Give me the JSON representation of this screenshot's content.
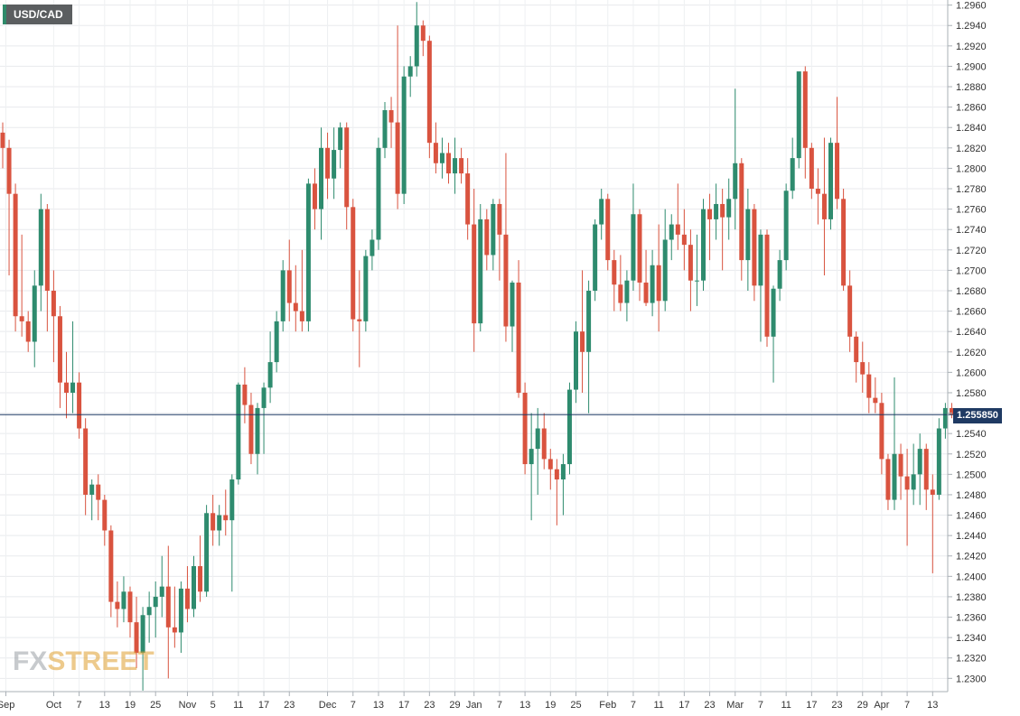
{
  "chart_data": {
    "type": "candlestick",
    "symbol": "USD/CAD",
    "last_price_label": "1.255850",
    "last_price": 1.25585,
    "ylim": [
      1.2287,
      1.2965
    ],
    "y_ticks": [
      "1.2300",
      "1.2320",
      "1.2340",
      "1.2360",
      "1.2380",
      "1.2400",
      "1.2420",
      "1.2440",
      "1.2460",
      "1.2480",
      "1.2500",
      "1.2520",
      "1.2540",
      "1.2560",
      "1.2580",
      "1.2600",
      "1.2620",
      "1.2640",
      "1.2660",
      "1.2680",
      "1.2700",
      "1.2720",
      "1.2740",
      "1.2760",
      "1.2780",
      "1.2800",
      "1.2820",
      "1.2840",
      "1.2860",
      "1.2880",
      "1.2900",
      "1.2920",
      "1.2940",
      "1.2960"
    ],
    "x_ticks": [
      {
        "label": "Sep",
        "idx": 0.5
      },
      {
        "label": "Oct",
        "idx": 8
      },
      {
        "label": "7",
        "idx": 12
      },
      {
        "label": "13",
        "idx": 16
      },
      {
        "label": "19",
        "idx": 20
      },
      {
        "label": "25",
        "idx": 24
      },
      {
        "label": "Nov",
        "idx": 29
      },
      {
        "label": "5",
        "idx": 33
      },
      {
        "label": "11",
        "idx": 37
      },
      {
        "label": "17",
        "idx": 41
      },
      {
        "label": "23",
        "idx": 45
      },
      {
        "label": "Dec",
        "idx": 51
      },
      {
        "label": "7",
        "idx": 55
      },
      {
        "label": "13",
        "idx": 59
      },
      {
        "label": "17",
        "idx": 63
      },
      {
        "label": "23",
        "idx": 67
      },
      {
        "label": "29",
        "idx": 71
      },
      {
        "label": "Jan",
        "idx": 74
      },
      {
        "label": "7",
        "idx": 78
      },
      {
        "label": "13",
        "idx": 82
      },
      {
        "label": "19",
        "idx": 86
      },
      {
        "label": "25",
        "idx": 90
      },
      {
        "label": "Feb",
        "idx": 95
      },
      {
        "label": "7",
        "idx": 99
      },
      {
        "label": "11",
        "idx": 103
      },
      {
        "label": "17",
        "idx": 107
      },
      {
        "label": "23",
        "idx": 111
      },
      {
        "label": "Mar",
        "idx": 115
      },
      {
        "label": "7",
        "idx": 119
      },
      {
        "label": "11",
        "idx": 123
      },
      {
        "label": "17",
        "idx": 127
      },
      {
        "label": "23",
        "idx": 131
      },
      {
        "label": "29",
        "idx": 135
      },
      {
        "label": "Apr",
        "idx": 138
      },
      {
        "label": "7",
        "idx": 142
      },
      {
        "label": "13",
        "idx": 146
      }
    ],
    "candles": [
      [
        1.2835,
        1.2845,
        1.28,
        1.282
      ],
      [
        1.282,
        1.2828,
        1.2695,
        1.2775
      ],
      [
        1.2775,
        1.2785,
        1.264,
        1.2655
      ],
      [
        1.2655,
        1.2735,
        1.2635,
        1.265
      ],
      [
        1.265,
        1.266,
        1.262,
        1.263
      ],
      [
        1.263,
        1.27,
        1.2605,
        1.2685
      ],
      [
        1.2685,
        1.2775,
        1.266,
        1.276
      ],
      [
        1.276,
        1.2765,
        1.264,
        1.268
      ],
      [
        1.268,
        1.27,
        1.261,
        1.2655
      ],
      [
        1.2655,
        1.2665,
        1.2565,
        1.259
      ],
      [
        1.259,
        1.262,
        1.2555,
        1.258
      ],
      [
        1.258,
        1.265,
        1.256,
        1.259
      ],
      [
        1.259,
        1.26,
        1.2535,
        1.2545
      ],
      [
        1.2545,
        1.2555,
        1.246,
        1.248
      ],
      [
        1.248,
        1.2495,
        1.2455,
        1.249
      ],
      [
        1.249,
        1.25,
        1.2455,
        1.2475
      ],
      [
        1.2475,
        1.248,
        1.243,
        1.2445
      ],
      [
        1.2445,
        1.245,
        1.236,
        1.2375
      ],
      [
        1.2375,
        1.2395,
        1.235,
        1.2368
      ],
      [
        1.2368,
        1.24,
        1.2355,
        1.2385
      ],
      [
        1.2385,
        1.239,
        1.234,
        1.2355
      ],
      [
        1.2355,
        1.238,
        1.231,
        1.2325
      ],
      [
        1.2325,
        1.237,
        1.2288,
        1.2362
      ],
      [
        1.2362,
        1.2385,
        1.2335,
        1.237
      ],
      [
        1.237,
        1.2395,
        1.234,
        1.238
      ],
      [
        1.238,
        1.242,
        1.236,
        1.239
      ],
      [
        1.239,
        1.243,
        1.23,
        1.235
      ],
      [
        1.235,
        1.239,
        1.233,
        1.2345
      ],
      [
        1.2345,
        1.2395,
        1.2325,
        1.2388
      ],
      [
        1.2388,
        1.241,
        1.2355,
        1.2368
      ],
      [
        1.2368,
        1.242,
        1.236,
        1.241
      ],
      [
        1.241,
        1.244,
        1.2375,
        1.2385
      ],
      [
        1.2385,
        1.247,
        1.238,
        1.2462
      ],
      [
        1.2462,
        1.248,
        1.243,
        1.2445
      ],
      [
        1.2445,
        1.247,
        1.243,
        1.246
      ],
      [
        1.246,
        1.2485,
        1.244,
        1.2455
      ],
      [
        1.2455,
        1.25,
        1.2385,
        1.2495
      ],
      [
        1.2495,
        1.259,
        1.249,
        1.2588
      ],
      [
        1.2588,
        1.2605,
        1.255,
        1.2568
      ],
      [
        1.2568,
        1.258,
        1.251,
        1.252
      ],
      [
        1.252,
        1.257,
        1.25,
        1.2565
      ],
      [
        1.2565,
        1.259,
        1.252,
        1.2585
      ],
      [
        1.2585,
        1.264,
        1.257,
        1.261
      ],
      [
        1.261,
        1.266,
        1.26,
        1.265
      ],
      [
        1.265,
        1.271,
        1.264,
        1.27
      ],
      [
        1.27,
        1.273,
        1.265,
        1.2668
      ],
      [
        1.2668,
        1.2705,
        1.264,
        1.266
      ],
      [
        1.266,
        1.272,
        1.264,
        1.265
      ],
      [
        1.265,
        1.279,
        1.264,
        1.2785
      ],
      [
        1.2785,
        1.28,
        1.274,
        1.276
      ],
      [
        1.276,
        1.284,
        1.273,
        1.282
      ],
      [
        1.282,
        1.2835,
        1.277,
        1.279
      ],
      [
        1.279,
        1.284,
        1.277,
        1.2818
      ],
      [
        1.2818,
        1.2845,
        1.28,
        1.284
      ],
      [
        1.284,
        1.2845,
        1.274,
        1.2762
      ],
      [
        1.2762,
        1.277,
        1.264,
        1.2652
      ],
      [
        1.2652,
        1.27,
        1.2605,
        1.265
      ],
      [
        1.265,
        1.272,
        1.264,
        1.2714
      ],
      [
        1.2714,
        1.274,
        1.27,
        1.273
      ],
      [
        1.273,
        1.283,
        1.272,
        1.282
      ],
      [
        1.282,
        1.2865,
        1.281,
        1.2857
      ],
      [
        1.2857,
        1.287,
        1.282,
        1.2845
      ],
      [
        1.2845,
        1.294,
        1.276,
        1.2775
      ],
      [
        1.2775,
        1.29,
        1.2765,
        1.289
      ],
      [
        1.289,
        1.291,
        1.287,
        1.29
      ],
      [
        1.29,
        1.2963,
        1.289,
        1.294
      ],
      [
        1.294,
        1.2945,
        1.291,
        1.2925
      ],
      [
        1.2925,
        1.293,
        1.281,
        1.2825
      ],
      [
        1.2825,
        1.2845,
        1.2795,
        1.2805
      ],
      [
        1.2805,
        1.283,
        1.279,
        1.2815
      ],
      [
        1.2815,
        1.2825,
        1.2785,
        1.2795
      ],
      [
        1.2795,
        1.283,
        1.2775,
        1.281
      ],
      [
        1.281,
        1.282,
        1.2785,
        1.2795
      ],
      [
        1.2795,
        1.281,
        1.273,
        1.2745
      ],
      [
        1.2745,
        1.278,
        1.262,
        1.2648
      ],
      [
        1.2648,
        1.2765,
        1.264,
        1.275
      ],
      [
        1.275,
        1.276,
        1.27,
        1.2715
      ],
      [
        1.2715,
        1.277,
        1.27,
        1.2765
      ],
      [
        1.2765,
        1.277,
        1.269,
        1.2735
      ],
      [
        1.2735,
        1.2815,
        1.263,
        1.2645
      ],
      [
        1.2645,
        1.269,
        1.262,
        1.2688
      ],
      [
        1.2688,
        1.271,
        1.2575,
        1.258
      ],
      [
        1.258,
        1.259,
        1.25,
        1.251
      ],
      [
        1.251,
        1.256,
        1.2455,
        1.2525
      ],
      [
        1.2525,
        1.2565,
        1.248,
        1.2545
      ],
      [
        1.2545,
        1.256,
        1.2505,
        1.2515
      ],
      [
        1.2515,
        1.2525,
        1.2485,
        1.2505
      ],
      [
        1.2505,
        1.2515,
        1.245,
        1.2495
      ],
      [
        1.2495,
        1.252,
        1.246,
        1.251
      ],
      [
        1.251,
        1.259,
        1.25,
        1.2583
      ],
      [
        1.2583,
        1.265,
        1.257,
        1.264
      ],
      [
        1.264,
        1.27,
        1.258,
        1.262
      ],
      [
        1.262,
        1.269,
        1.256,
        1.268
      ],
      [
        1.268,
        1.275,
        1.267,
        1.2745
      ],
      [
        1.2745,
        1.278,
        1.273,
        1.277
      ],
      [
        1.277,
        1.2775,
        1.27,
        1.271
      ],
      [
        1.271,
        1.272,
        1.266,
        1.2686
      ],
      [
        1.2686,
        1.2715,
        1.266,
        1.2668
      ],
      [
        1.2668,
        1.27,
        1.265,
        1.269
      ],
      [
        1.269,
        1.2785,
        1.268,
        1.2755
      ],
      [
        1.2755,
        1.276,
        1.267,
        1.2688
      ],
      [
        1.2688,
        1.272,
        1.2665,
        1.2668
      ],
      [
        1.2668,
        1.272,
        1.2655,
        1.2705
      ],
      [
        1.2705,
        1.2745,
        1.264,
        1.267
      ],
      [
        1.267,
        1.276,
        1.266,
        1.273
      ],
      [
        1.273,
        1.2755,
        1.271,
        1.2745
      ],
      [
        1.2745,
        1.2785,
        1.272,
        1.2735
      ],
      [
        1.2735,
        1.276,
        1.27,
        1.2725
      ],
      [
        1.2725,
        1.274,
        1.266,
        1.269
      ],
      [
        1.269,
        1.2735,
        1.2665,
        1.269
      ],
      [
        1.269,
        1.277,
        1.268,
        1.276
      ],
      [
        1.276,
        1.2775,
        1.271,
        1.275
      ],
      [
        1.275,
        1.2785,
        1.273,
        1.2765
      ],
      [
        1.2765,
        1.278,
        1.27,
        1.2752
      ],
      [
        1.2752,
        1.279,
        1.273,
        1.277
      ],
      [
        1.277,
        1.2878,
        1.274,
        1.2805
      ],
      [
        1.2805,
        1.281,
        1.269,
        1.271
      ],
      [
        1.271,
        1.278,
        1.268,
        1.276
      ],
      [
        1.276,
        1.2765,
        1.267,
        1.2685
      ],
      [
        1.2685,
        1.274,
        1.263,
        1.2735
      ],
      [
        1.2735,
        1.274,
        1.2625,
        1.2635
      ],
      [
        1.2635,
        1.2685,
        1.259,
        1.2682
      ],
      [
        1.2682,
        1.272,
        1.267,
        1.271
      ],
      [
        1.271,
        1.2785,
        1.27,
        1.2778
      ],
      [
        1.2778,
        1.283,
        1.277,
        1.281
      ],
      [
        1.281,
        1.289,
        1.28,
        1.2895
      ],
      [
        1.2895,
        1.29,
        1.279,
        1.282
      ],
      [
        1.282,
        1.2825,
        1.277,
        1.278
      ],
      [
        1.278,
        1.28,
        1.2745,
        1.2775
      ],
      [
        1.2775,
        1.283,
        1.2695,
        1.275
      ],
      [
        1.275,
        1.283,
        1.274,
        1.2825
      ],
      [
        1.2825,
        1.287,
        1.276,
        1.277
      ],
      [
        1.277,
        1.278,
        1.268,
        1.2685
      ],
      [
        1.2685,
        1.27,
        1.262,
        1.2635
      ],
      [
        1.2635,
        1.264,
        1.259,
        1.261
      ],
      [
        1.261,
        1.263,
        1.258,
        1.2598
      ],
      [
        1.2598,
        1.261,
        1.256,
        1.2575
      ],
      [
        1.2575,
        1.2595,
        1.256,
        1.257
      ],
      [
        1.257,
        1.258,
        1.25,
        1.2515
      ],
      [
        1.2515,
        1.252,
        1.2465,
        1.2475
      ],
      [
        1.2475,
        1.2595,
        1.2465,
        1.252
      ],
      [
        1.252,
        1.253,
        1.2475,
        1.2498
      ],
      [
        1.2498,
        1.2525,
        1.243,
        1.2485
      ],
      [
        1.2485,
        1.253,
        1.247,
        1.25
      ],
      [
        1.25,
        1.254,
        1.247,
        1.2525
      ],
      [
        1.2525,
        1.253,
        1.2465,
        1.2485
      ],
      [
        1.2485,
        1.25,
        1.2403,
        1.248
      ],
      [
        1.248,
        1.2555,
        1.2475,
        1.2545
      ],
      [
        1.2545,
        1.257,
        1.2535,
        1.2565
      ],
      [
        1.2565,
        1.257,
        1.2555,
        1.25585
      ]
    ]
  },
  "watermark": {
    "part1": "FX",
    "part2": "STREET"
  }
}
